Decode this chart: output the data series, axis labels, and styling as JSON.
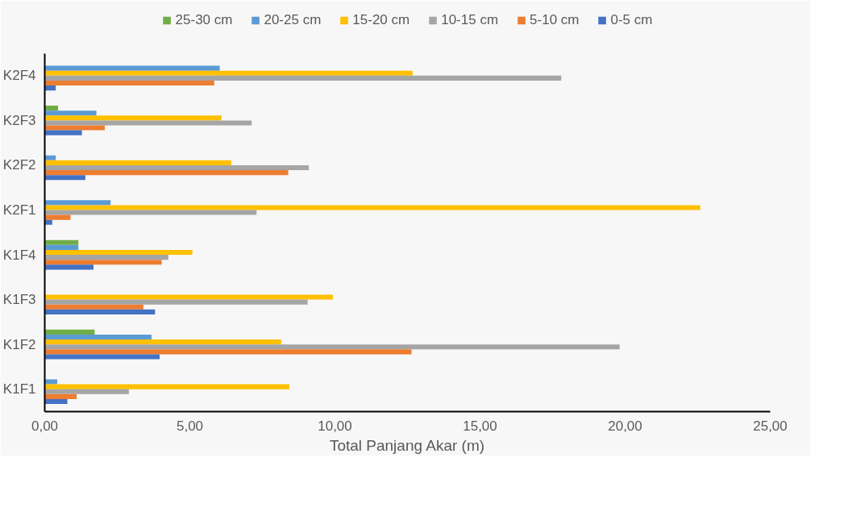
{
  "chart_data": {
    "type": "bar",
    "orientation": "horizontal",
    "xlabel": "Total Panjang Akar (m)",
    "categories": [
      "K2F4",
      "K2F3",
      "K2F2",
      "K2F1",
      "K1F4",
      "K1F3",
      "K1F2",
      "K1F1"
    ],
    "series": [
      {
        "name": "25-30 cm",
        "color": "#70ad47",
        "values": [
          0,
          0.46,
          0,
          0,
          1.16,
          0,
          1.72,
          0
        ]
      },
      {
        "name": "20-25 cm",
        "color": "#5b9bd5",
        "values": [
          6.03,
          1.78,
          0.38,
          2.27,
          1.16,
          0,
          3.68,
          0.43
        ]
      },
      {
        "name": "15-20 cm",
        "color": "#ffc000",
        "values": [
          12.68,
          6.09,
          6.43,
          22.59,
          5.09,
          9.93,
          8.15,
          8.43
        ]
      },
      {
        "name": "10-15 cm",
        "color": "#a5a5a5",
        "values": [
          17.8,
          7.13,
          9.1,
          7.3,
          4.26,
          9.06,
          19.81,
          2.9
        ]
      },
      {
        "name": "5-10 cm",
        "color": "#ed7d31",
        "values": [
          5.84,
          2.07,
          8.39,
          0.89,
          4.03,
          3.4,
          12.64,
          1.1
        ]
      },
      {
        "name": "0-5 cm",
        "color": "#4472c4",
        "values": [
          0.38,
          1.28,
          1.4,
          0.26,
          1.68,
          3.8,
          3.96,
          0.78
        ]
      }
    ],
    "xlim": [
      0,
      25
    ],
    "xticks": [
      {
        "value": 0,
        "label": "0,00"
      },
      {
        "value": 5,
        "label": "5,00"
      },
      {
        "value": 10,
        "label": "10,00"
      },
      {
        "value": 15,
        "label": "15,00"
      },
      {
        "value": 20,
        "label": "20,00"
      },
      {
        "value": 25,
        "label": "25,00"
      }
    ],
    "grid": false,
    "legend": "top"
  }
}
